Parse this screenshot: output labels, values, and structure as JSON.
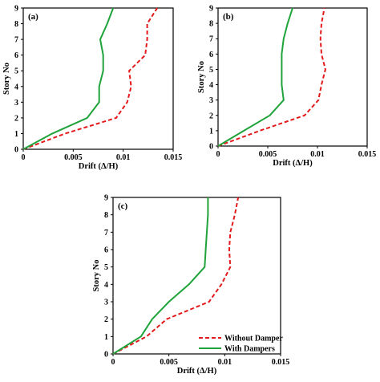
{
  "chart_data": [
    {
      "type": "line",
      "panel_label": "(a)",
      "xlabel": "Drift (Δ/H)",
      "ylabel": "Story No",
      "xlim": [
        0,
        0.015
      ],
      "ylim": [
        0,
        9
      ],
      "x_ticks": [
        "0",
        "0.005",
        "0.01",
        "0.015"
      ],
      "y_ticks": [
        "0",
        "1",
        "2",
        "3",
        "4",
        "5",
        "6",
        "7",
        "8",
        "9"
      ],
      "y": [
        0,
        1,
        2,
        3,
        4,
        5,
        6,
        7,
        8,
        9
      ],
      "series": [
        {
          "name": "Without Damper",
          "color": "#e31a1c",
          "style": "dashed",
          "values": [
            0,
            0.0042,
            0.0093,
            0.0104,
            0.0108,
            0.0106,
            0.0122,
            0.0124,
            0.0124,
            0.0134
          ]
        },
        {
          "name": "With Dampers",
          "color": "#1fa33a",
          "style": "solid",
          "values": [
            0,
            0.0029,
            0.0064,
            0.0076,
            0.0076,
            0.008,
            0.008,
            0.0077,
            0.0084,
            0.009
          ]
        }
      ]
    },
    {
      "type": "line",
      "panel_label": "(b)",
      "xlabel": "Drift (Δ/H)",
      "ylabel": "Story No",
      "xlim": [
        0,
        0.015
      ],
      "ylim": [
        0,
        9
      ],
      "x_ticks": [
        "0",
        "0.005",
        "0.01",
        "0.015"
      ],
      "y_ticks": [
        "0",
        "1",
        "2",
        "3",
        "4",
        "5",
        "6",
        "7",
        "8",
        "9"
      ],
      "y": [
        0,
        1,
        2,
        3,
        4,
        5,
        6,
        7,
        8,
        9
      ],
      "series": [
        {
          "name": "Without Damper",
          "color": "#e31a1c",
          "style": "dashed",
          "values": [
            0,
            0.0042,
            0.0087,
            0.0101,
            0.0104,
            0.0108,
            0.0104,
            0.0103,
            0.0104,
            0.0107
          ]
        },
        {
          "name": "With Dampers",
          "color": "#1fa33a",
          "style": "solid",
          "values": [
            0,
            0.0026,
            0.0052,
            0.0066,
            0.0064,
            0.0064,
            0.0064,
            0.0066,
            0.007,
            0.0075
          ]
        }
      ]
    },
    {
      "type": "line",
      "panel_label": "(c)",
      "xlabel": "Drift (Δ/H)",
      "ylabel": "Story No",
      "xlim": [
        0,
        0.015
      ],
      "ylim": [
        0,
        9
      ],
      "x_ticks": [
        "0",
        "0.005",
        "0.01",
        "0.015"
      ],
      "y_ticks": [
        "0",
        "1",
        "2",
        "3",
        "4",
        "5",
        "6",
        "7",
        "8",
        "9"
      ],
      "y": [
        0,
        1,
        2,
        3,
        4,
        5,
        6,
        7,
        8,
        9
      ],
      "legend": "bottom-right",
      "series": [
        {
          "name": "Without Damper",
          "color": "#e31a1c",
          "style": "dashed",
          "values": [
            0,
            0.003,
            0.0048,
            0.0086,
            0.0097,
            0.0105,
            0.0104,
            0.0105,
            0.0109,
            0.0112
          ]
        },
        {
          "name": "With Dampers",
          "color": "#1fa33a",
          "style": "solid",
          "values": [
            0,
            0.0025,
            0.0035,
            0.005,
            0.0068,
            0.0082,
            0.0083,
            0.0084,
            0.0085,
            0.0085
          ]
        }
      ]
    }
  ],
  "legend": {
    "without_label": "Without Damper",
    "with_label": "With Dampers"
  }
}
